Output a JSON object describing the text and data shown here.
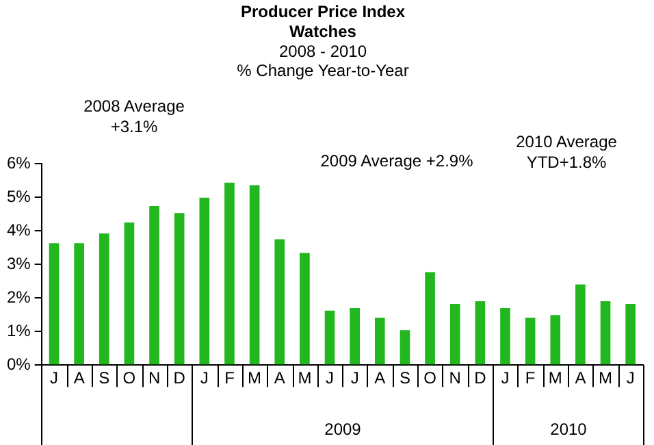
{
  "chart_data": {
    "type": "bar",
    "title": "Producer Price Index\nWatches",
    "subtitle": "2008 - 2010\n% Change Year-to-Year",
    "categories": [
      "J",
      "A",
      "S",
      "O",
      "N",
      "D",
      "J",
      "F",
      "M",
      "A",
      "M",
      "J",
      "J",
      "A",
      "S",
      "O",
      "N",
      "D",
      "J",
      "F",
      "M",
      "A",
      "M",
      "J"
    ],
    "values": [
      3.63,
      3.63,
      3.92,
      4.25,
      4.74,
      4.53,
      4.99,
      5.44,
      5.36,
      3.75,
      3.34,
      1.62,
      1.7,
      1.41,
      1.04,
      2.77,
      1.82,
      1.9,
      1.7,
      1.41,
      1.49,
      2.4,
      1.9,
      1.82
    ],
    "color": "#22b61f",
    "ylim": [
      0,
      6
    ],
    "yticks": [
      {
        "value": 0,
        "label": "0%"
      },
      {
        "value": 1,
        "label": "1%"
      },
      {
        "value": 2,
        "label": "2%"
      },
      {
        "value": 3,
        "label": "3%"
      },
      {
        "value": 4,
        "label": "4%"
      },
      {
        "value": 5,
        "label": "5%"
      },
      {
        "value": 6,
        "label": "6%"
      }
    ],
    "grid": false,
    "legend": false,
    "annotations": [
      "2008 Average\n+3.1%",
      "2009 Average +2.9%",
      "2010 Average\nYTD+1.8%",
      "2009",
      "2010"
    ]
  }
}
